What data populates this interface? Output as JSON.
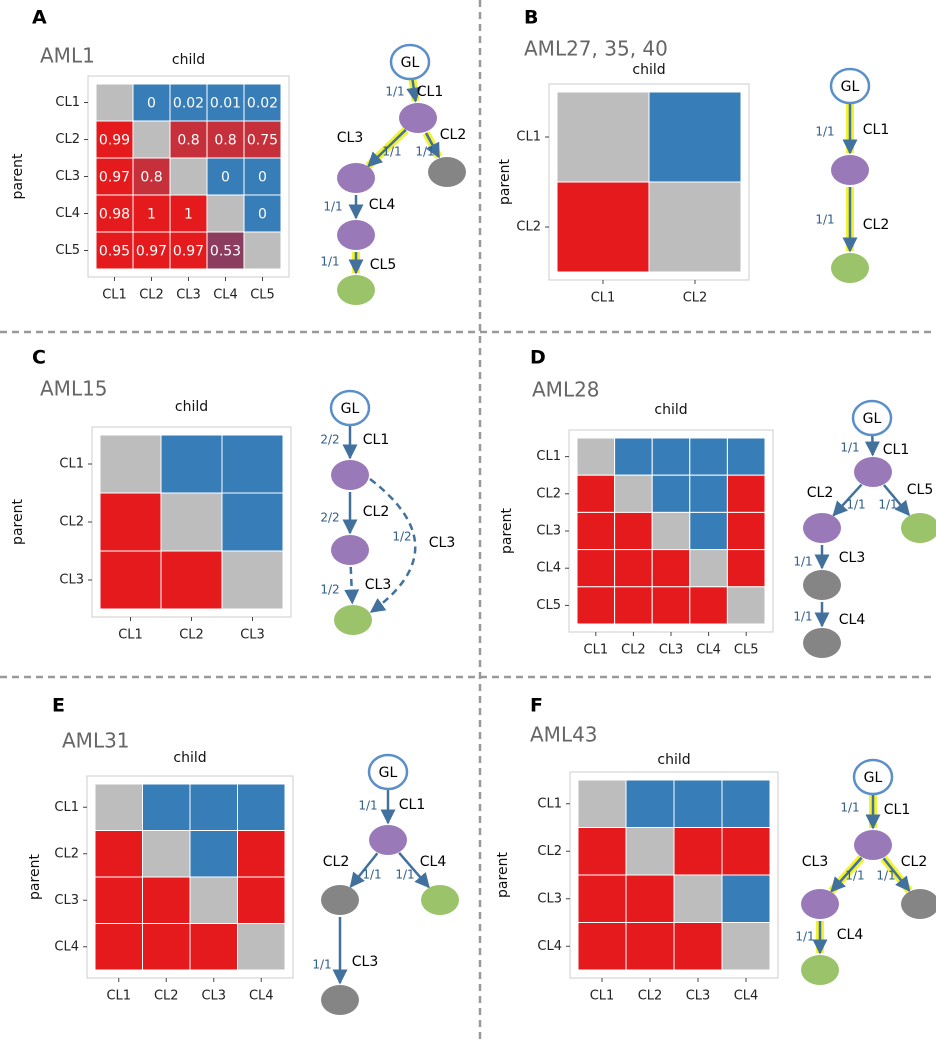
{
  "palette": {
    "red": "#e41a1c",
    "red-dark": "#c5303b",
    "mauve": "#8c3c5e",
    "blue": "#377eb8",
    "gray": "#bdbdbd",
    "purple": "#9a79b9",
    "node-gray": "#858585",
    "green": "#9bc46a",
    "white": "#ffffff"
  },
  "panels": [
    {
      "letter": "A",
      "title": "AML1",
      "heatmap": {
        "x_label": "child",
        "y_label": "parent",
        "labels": [
          "CL1",
          "CL2",
          "CL3",
          "CL4",
          "CL5"
        ],
        "fills": [
          [
            "gray",
            "blue",
            "blue",
            "blue",
            "blue"
          ],
          [
            "red",
            "gray",
            "red-dark",
            "red-dark",
            "red-dark"
          ],
          [
            "red",
            "red-dark",
            "gray",
            "blue",
            "blue"
          ],
          [
            "red",
            "red",
            "red",
            "gray",
            "blue"
          ],
          [
            "red",
            "red",
            "red",
            "mauve",
            "gray"
          ]
        ],
        "values": [
          [
            null,
            0,
            0.02,
            0.01,
            0.02
          ],
          [
            0.99,
            null,
            0.8,
            0.8,
            0.75
          ],
          [
            0.97,
            0.8,
            null,
            0,
            0
          ],
          [
            0.98,
            1,
            1,
            null,
            0
          ],
          [
            0.95,
            0.97,
            0.97,
            0.53,
            null
          ]
        ]
      },
      "tree": {
        "nodes": [
          {
            "label": "GL",
            "color": "white"
          },
          {
            "color": "purple"
          },
          {
            "color": "node-gray"
          },
          {
            "color": "purple"
          },
          {
            "color": "purple"
          },
          {
            "color": "green"
          }
        ],
        "edges": [
          {
            "from": 0,
            "to": 1,
            "clone": "CL1",
            "fraction": "1/1",
            "highlight": true
          },
          {
            "from": 1,
            "to": 3,
            "clone": "CL3",
            "fraction": "1/1",
            "highlight": true
          },
          {
            "from": 1,
            "to": 2,
            "clone": "CL2",
            "fraction": "1/1",
            "highlight": true
          },
          {
            "from": 3,
            "to": 4,
            "clone": "CL4",
            "fraction": "1/1",
            "highlight": false
          },
          {
            "from": 4,
            "to": 5,
            "clone": "CL5",
            "fraction": "1/1",
            "highlight": true
          }
        ]
      }
    },
    {
      "letter": "B",
      "title": "AML27, 35, 40",
      "heatmap": {
        "x_label": "child",
        "y_label": "parent",
        "labels": [
          "CL1",
          "CL2"
        ],
        "fills": [
          [
            "gray",
            "blue"
          ],
          [
            "red",
            "gray"
          ]
        ]
      },
      "tree": {
        "nodes": [
          {
            "label": "GL",
            "color": "white"
          },
          {
            "color": "purple"
          },
          {
            "color": "green"
          }
        ],
        "edges": [
          {
            "from": 0,
            "to": 1,
            "clone": "CL1",
            "fraction": "1/1",
            "highlight": true
          },
          {
            "from": 1,
            "to": 2,
            "clone": "CL2",
            "fraction": "1/1",
            "highlight": true
          }
        ]
      }
    },
    {
      "letter": "C",
      "title": "AML15",
      "heatmap": {
        "x_label": "child",
        "y_label": "parent",
        "labels": [
          "CL1",
          "CL2",
          "CL3"
        ],
        "fills": [
          [
            "gray",
            "blue",
            "blue"
          ],
          [
            "red",
            "gray",
            "blue"
          ],
          [
            "red",
            "red",
            "gray"
          ]
        ]
      },
      "tree": {
        "nodes": [
          {
            "label": "GL",
            "color": "white"
          },
          {
            "color": "purple"
          },
          {
            "color": "purple"
          },
          {
            "color": "green"
          }
        ],
        "edges": [
          {
            "from": 0,
            "to": 1,
            "clone": "CL1",
            "fraction": "2/2",
            "highlight": false
          },
          {
            "from": 1,
            "to": 2,
            "clone": "CL2",
            "fraction": "2/2",
            "highlight": false
          },
          {
            "from": 2,
            "to": 3,
            "clone": "CL3",
            "fraction": "1/2",
            "highlight": false,
            "dashed": true
          },
          {
            "from": 1,
            "to": 3,
            "clone": "CL3",
            "fraction": "1/2",
            "highlight": false,
            "dashed": true,
            "curved": true
          }
        ]
      }
    },
    {
      "letter": "D",
      "title": "AML28",
      "heatmap": {
        "x_label": "child",
        "y_label": "parent",
        "labels": [
          "CL1",
          "CL2",
          "CL3",
          "CL4",
          "CL5"
        ],
        "fills": [
          [
            "gray",
            "blue",
            "blue",
            "blue",
            "blue"
          ],
          [
            "red",
            "gray",
            "blue",
            "blue",
            "red"
          ],
          [
            "red",
            "red",
            "gray",
            "blue",
            "red"
          ],
          [
            "red",
            "red",
            "red",
            "gray",
            "red"
          ],
          [
            "red",
            "red",
            "red",
            "red",
            "gray"
          ]
        ]
      },
      "tree": {
        "nodes": [
          {
            "label": "GL",
            "color": "white"
          },
          {
            "color": "purple"
          },
          {
            "color": "purple"
          },
          {
            "color": "green"
          },
          {
            "color": "node-gray"
          },
          {
            "color": "node-gray"
          }
        ],
        "edges": [
          {
            "from": 0,
            "to": 1,
            "clone": "CL1",
            "fraction": "1/1",
            "highlight": false
          },
          {
            "from": 1,
            "to": 2,
            "clone": "CL2",
            "fraction": "1/1",
            "highlight": false
          },
          {
            "from": 1,
            "to": 3,
            "clone": "CL5",
            "fraction": "1/1",
            "highlight": false
          },
          {
            "from": 2,
            "to": 4,
            "clone": "CL3",
            "fraction": "1/1",
            "highlight": false
          },
          {
            "from": 4,
            "to": 5,
            "clone": "CL4",
            "fraction": "1/1",
            "highlight": false
          }
        ]
      }
    },
    {
      "letter": "E",
      "title": "AML31",
      "heatmap": {
        "x_label": "child",
        "y_label": "parent",
        "labels": [
          "CL1",
          "CL2",
          "CL3",
          "CL4"
        ],
        "fills": [
          [
            "gray",
            "blue",
            "blue",
            "blue"
          ],
          [
            "red",
            "gray",
            "blue",
            "red"
          ],
          [
            "red",
            "red",
            "gray",
            "red"
          ],
          [
            "red",
            "red",
            "red",
            "gray"
          ]
        ]
      },
      "tree": {
        "nodes": [
          {
            "label": "GL",
            "color": "white"
          },
          {
            "color": "purple"
          },
          {
            "color": "node-gray"
          },
          {
            "color": "green"
          },
          {
            "color": "node-gray"
          }
        ],
        "edges": [
          {
            "from": 0,
            "to": 1,
            "clone": "CL1",
            "fraction": "1/1",
            "highlight": false
          },
          {
            "from": 1,
            "to": 2,
            "clone": "CL2",
            "fraction": "1/1",
            "highlight": false
          },
          {
            "from": 1,
            "to": 3,
            "clone": "CL4",
            "fraction": "1/1",
            "highlight": false
          },
          {
            "from": 2,
            "to": 4,
            "clone": "CL3",
            "fraction": "1/1",
            "highlight": false
          }
        ]
      }
    },
    {
      "letter": "F",
      "title": "AML43",
      "heatmap": {
        "x_label": "child",
        "y_label": "parent",
        "labels": [
          "CL1",
          "CL2",
          "CL3",
          "CL4"
        ],
        "fills": [
          [
            "gray",
            "blue",
            "blue",
            "blue"
          ],
          [
            "red",
            "gray",
            "red",
            "red"
          ],
          [
            "red",
            "red",
            "gray",
            "blue"
          ],
          [
            "red",
            "red",
            "red",
            "gray"
          ]
        ]
      },
      "tree": {
        "nodes": [
          {
            "label": "GL",
            "color": "white"
          },
          {
            "color": "purple"
          },
          {
            "color": "purple"
          },
          {
            "color": "node-gray"
          },
          {
            "color": "green"
          }
        ],
        "edges": [
          {
            "from": 0,
            "to": 1,
            "clone": "CL1",
            "fraction": "1/1",
            "highlight": true
          },
          {
            "from": 1,
            "to": 2,
            "clone": "CL3",
            "fraction": "1/1",
            "highlight": true
          },
          {
            "from": 1,
            "to": 3,
            "clone": "CL2",
            "fraction": "1/1",
            "highlight": true
          },
          {
            "from": 2,
            "to": 4,
            "clone": "CL4",
            "fraction": "1/1",
            "highlight": true
          }
        ]
      }
    }
  ]
}
